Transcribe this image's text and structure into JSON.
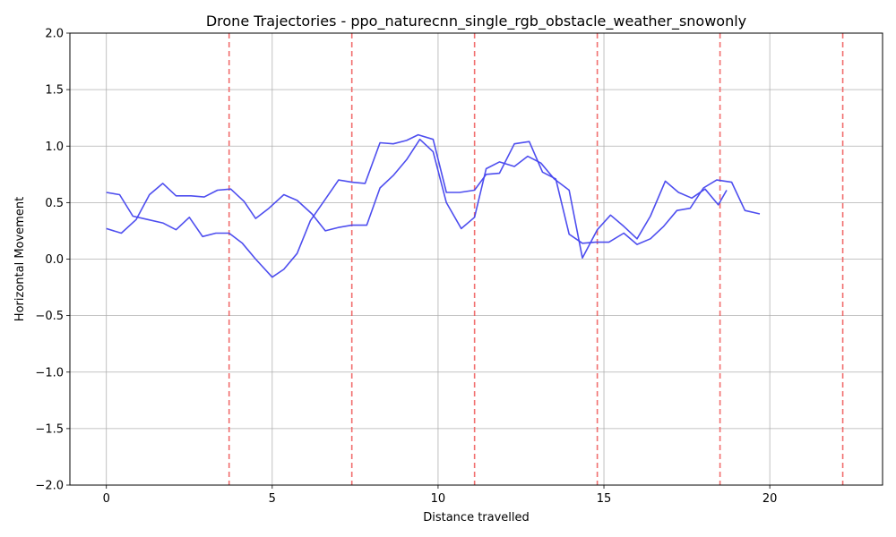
{
  "chart_data": {
    "type": "line",
    "title": "Drone Trajectories - ppo_naturecnn_single_rgb_obstacle_weather_snowonly",
    "xlabel": "Distance travelled",
    "ylabel": "Horizontal Movement",
    "xlim": [
      -1.1,
      23.4
    ],
    "ylim": [
      -2.0,
      2.0
    ],
    "xticks": [
      0,
      5,
      10,
      15,
      20
    ],
    "yticks": [
      -2.0,
      -1.5,
      -1.0,
      -0.5,
      0.0,
      0.5,
      1.0,
      1.5,
      2.0
    ],
    "ytick_labels": [
      "−2.0",
      "−1.5",
      "−1.0",
      "−0.5",
      "0.0",
      "0.5",
      "1.0",
      "1.5",
      "2.0"
    ],
    "grid": true,
    "line_color": "#4444ee",
    "vline_color": "#ee5555",
    "vlines": [
      3.7,
      7.4,
      11.1,
      14.8,
      18.5,
      22.2
    ],
    "series": [
      {
        "x": [
          0,
          0.4,
          0.8,
          1.25,
          1.7,
          2.1,
          2.5,
          2.9,
          3.3,
          3.7,
          4.1,
          4.5,
          5.0,
          5.35,
          5.75,
          6.15,
          6.6,
          7.0,
          7.4,
          7.8,
          8.25,
          8.65,
          9.05,
          9.4,
          9.85,
          10.25,
          10.65,
          11.1,
          11.45,
          11.85,
          12.3,
          12.75,
          13.15,
          13.55,
          13.95,
          14.35,
          14.75,
          15.15,
          15.6,
          16.0,
          16.4,
          16.8,
          17.2,
          17.6,
          18.0,
          18.4,
          18.85,
          19.25,
          19.7
        ],
        "y": [
          0.59,
          0.57,
          0.38,
          0.35,
          0.32,
          0.26,
          0.37,
          0.2,
          0.23,
          0.23,
          0.14,
          0.0,
          -0.16,
          -0.09,
          0.05,
          0.34,
          0.53,
          0.7,
          0.68,
          0.67,
          1.03,
          1.02,
          1.05,
          1.1,
          1.06,
          0.59,
          0.59,
          0.61,
          0.75,
          0.76,
          1.02,
          1.04,
          0.77,
          0.71,
          0.22,
          0.14,
          0.15,
          0.15,
          0.23,
          0.13,
          0.18,
          0.29,
          0.43,
          0.45,
          0.63,
          0.7,
          0.68,
          0.43,
          0.4
        ]
      },
      {
        "x": [
          0,
          0.45,
          0.9,
          1.3,
          1.7,
          2.1,
          2.55,
          2.95,
          3.35,
          3.75,
          4.15,
          4.5,
          4.9,
          5.35,
          5.75,
          6.2,
          6.6,
          7.0,
          7.4,
          7.85,
          8.25,
          8.65,
          9.05,
          9.45,
          9.85,
          10.25,
          10.7,
          11.1,
          11.45,
          11.85,
          12.3,
          12.7,
          13.1,
          13.5,
          13.95,
          14.35,
          14.8,
          15.2,
          15.6,
          16.0,
          16.4,
          16.85,
          17.25,
          17.65,
          18.05,
          18.45,
          18.7
        ],
        "y": [
          0.27,
          0.23,
          0.35,
          0.57,
          0.67,
          0.56,
          0.56,
          0.55,
          0.61,
          0.62,
          0.51,
          0.36,
          0.45,
          0.57,
          0.52,
          0.4,
          0.25,
          0.28,
          0.3,
          0.3,
          0.63,
          0.74,
          0.88,
          1.06,
          0.95,
          0.5,
          0.27,
          0.37,
          0.8,
          0.86,
          0.82,
          0.91,
          0.85,
          0.71,
          0.61,
          0.01,
          0.26,
          0.39,
          0.29,
          0.18,
          0.38,
          0.69,
          0.59,
          0.54,
          0.62,
          0.48,
          0.61
        ]
      }
    ]
  }
}
